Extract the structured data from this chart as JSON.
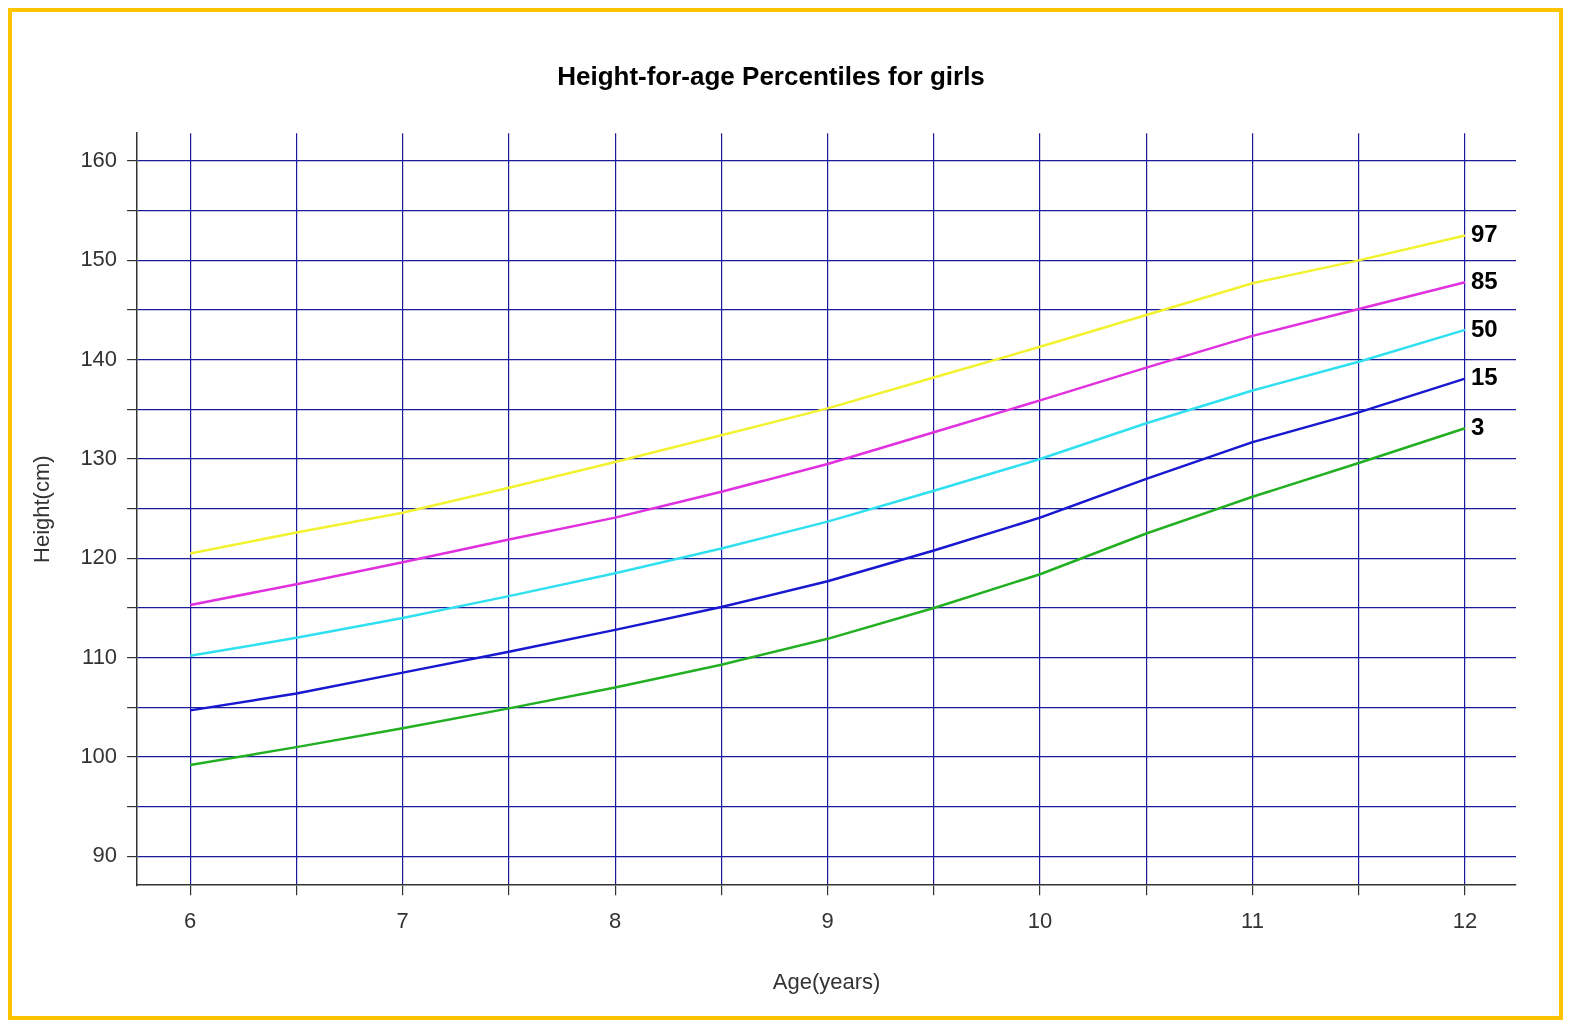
{
  "chart_data": {
    "type": "line",
    "title": "Height-for-age Percentiles for girls",
    "xlabel": "Age(years)",
    "ylabel": "Height(cm)",
    "x": [
      6,
      6.5,
      7,
      7.5,
      8,
      8.5,
      9,
      9.5,
      10,
      10.5,
      11,
      11.5,
      12
    ],
    "xlim": [
      5.75,
      12.24
    ],
    "xticks": [
      6,
      {
        "value": 6.5,
        "label": null
      },
      7,
      {
        "value": 7.5,
        "label": null
      },
      8,
      {
        "value": 8.5,
        "label": null
      },
      9,
      {
        "value": 9.5,
        "label": null
      },
      10,
      {
        "value": 10.5,
        "label": null
      },
      11,
      {
        "value": 11.5,
        "label": null
      },
      12
    ],
    "ylim": [
      87.1,
      162.8
    ],
    "yticks": [
      90,
      {
        "value": 95,
        "label": null
      },
      100,
      {
        "value": 105,
        "label": null
      },
      110,
      {
        "value": 115,
        "label": null
      },
      120,
      {
        "value": 125,
        "label": null
      },
      130,
      {
        "value": 135,
        "label": null
      },
      140,
      {
        "value": 145,
        "label": null
      },
      150,
      {
        "value": 155,
        "label": null
      },
      160
    ],
    "grid": true,
    "legend": false,
    "marker": "none",
    "line_style": "solid",
    "series": [
      {
        "name": "97",
        "color": "#f2f230",
        "values": [
          120.5,
          122.6,
          124.6,
          127.1,
          129.7,
          132.4,
          135.1,
          138.2,
          141.3,
          144.5,
          147.7,
          150,
          152.5
        ]
      },
      {
        "name": "85",
        "color": "#e030e0",
        "values": [
          115.3,
          117.4,
          119.6,
          121.9,
          124.1,
          126.7,
          129.5,
          132.7,
          135.9,
          139.2,
          142.4,
          145.1,
          147.8
        ]
      },
      {
        "name": "50",
        "color": "#30e0f0",
        "values": [
          110.2,
          112,
          114,
          116.2,
          118.5,
          121,
          123.7,
          126.8,
          130,
          133.6,
          136.9,
          139.8,
          143
        ]
      },
      {
        "name": "15",
        "color": "#1818d0",
        "values": [
          104.7,
          106.4,
          108.5,
          110.6,
          112.8,
          115.1,
          117.7,
          120.8,
          124.1,
          128,
          131.7,
          134.7,
          138.1
        ]
      },
      {
        "name": "3",
        "color": "#22b022",
        "values": [
          99.2,
          101,
          102.9,
          104.9,
          107,
          109.3,
          111.9,
          115,
          118.4,
          122.5,
          126.2,
          129.6,
          133.1
        ]
      }
    ]
  }
}
